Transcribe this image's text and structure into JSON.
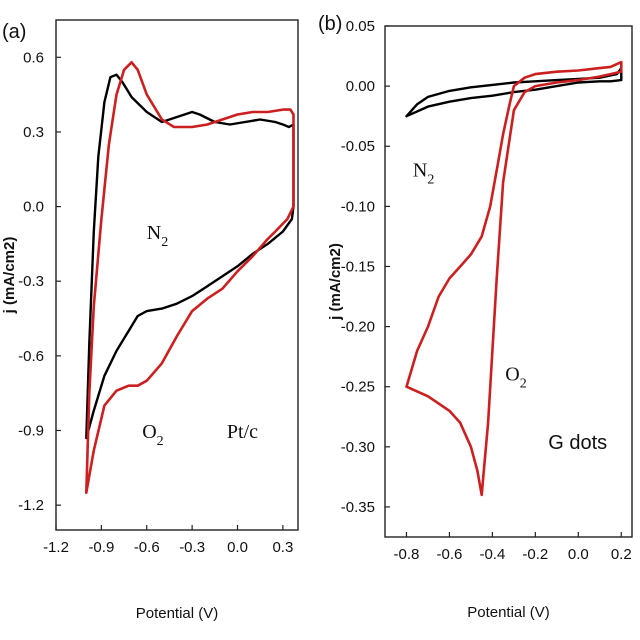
{
  "chart_data": [
    {
      "panel_label": "(a)",
      "type": "line",
      "xlabel": "Potential (V)",
      "ylabel": "j (mA/cm2)",
      "xlim": [
        -1.2,
        0.4
      ],
      "ylim": [
        -1.3,
        0.75
      ],
      "xticks": [
        -1.2,
        -0.9,
        -0.6,
        -0.3,
        0.0,
        0.3
      ],
      "xtick_labels": [
        "-1.2",
        "-0.9",
        "-0.6",
        "-0.3",
        "0.0",
        "0.3"
      ],
      "yticks": [
        -1.2,
        -0.9,
        -0.6,
        -0.3,
        0.0,
        0.3,
        0.6
      ],
      "ytick_labels": [
        "-1.2",
        "-0.9",
        "-0.6",
        "-0.3",
        "0.0",
        "0.3",
        "0.6"
      ],
      "annotations": [
        {
          "id": "n2",
          "base": "N",
          "sub": "2",
          "x": -0.6,
          "y": -0.13
        },
        {
          "id": "o2",
          "base": "O",
          "sub": "2",
          "x": -0.63,
          "y": -0.93
        },
        {
          "id": "ptc",
          "text": "Pt/c",
          "x": -0.07,
          "y": -0.93
        }
      ],
      "series": [
        {
          "gas": "N2",
          "color": "#000000",
          "points": [
            [
              -1.0,
              -0.93
            ],
            [
              -0.98,
              -0.55
            ],
            [
              -0.95,
              -0.1
            ],
            [
              -0.92,
              0.2
            ],
            [
              -0.88,
              0.42
            ],
            [
              -0.84,
              0.52
            ],
            [
              -0.8,
              0.53
            ],
            [
              -0.76,
              0.5
            ],
            [
              -0.7,
              0.44
            ],
            [
              -0.6,
              0.38
            ],
            [
              -0.5,
              0.34
            ],
            [
              -0.45,
              0.35
            ],
            [
              -0.4,
              0.36
            ],
            [
              -0.3,
              0.38
            ],
            [
              -0.25,
              0.37
            ],
            [
              -0.15,
              0.34
            ],
            [
              -0.05,
              0.33
            ],
            [
              0.05,
              0.34
            ],
            [
              0.15,
              0.35
            ],
            [
              0.25,
              0.34
            ],
            [
              0.3,
              0.33
            ],
            [
              0.34,
              0.32
            ],
            [
              0.37,
              0.33
            ],
            [
              0.37,
              0.0
            ],
            [
              0.36,
              -0.05
            ],
            [
              0.3,
              -0.1
            ],
            [
              0.2,
              -0.15
            ],
            [
              0.1,
              -0.19
            ],
            [
              0.0,
              -0.24
            ],
            [
              -0.1,
              -0.28
            ],
            [
              -0.2,
              -0.32
            ],
            [
              -0.3,
              -0.36
            ],
            [
              -0.4,
              -0.39
            ],
            [
              -0.5,
              -0.41
            ],
            [
              -0.6,
              -0.42
            ],
            [
              -0.66,
              -0.44
            ],
            [
              -0.72,
              -0.5
            ],
            [
              -0.8,
              -0.58
            ],
            [
              -0.88,
              -0.68
            ],
            [
              -0.95,
              -0.82
            ],
            [
              -1.0,
              -0.93
            ]
          ]
        },
        {
          "gas": "O2",
          "color": "#cc1f1f",
          "points": [
            [
              -1.0,
              -1.15
            ],
            [
              -0.98,
              -0.75
            ],
            [
              -0.95,
              -0.4
            ],
            [
              -0.9,
              -0.05
            ],
            [
              -0.85,
              0.25
            ],
            [
              -0.8,
              0.45
            ],
            [
              -0.75,
              0.55
            ],
            [
              -0.7,
              0.58
            ],
            [
              -0.66,
              0.55
            ],
            [
              -0.6,
              0.45
            ],
            [
              -0.5,
              0.35
            ],
            [
              -0.42,
              0.32
            ],
            [
              -0.3,
              0.32
            ],
            [
              -0.2,
              0.33
            ],
            [
              -0.1,
              0.35
            ],
            [
              0.0,
              0.37
            ],
            [
              0.1,
              0.38
            ],
            [
              0.2,
              0.38
            ],
            [
              0.3,
              0.39
            ],
            [
              0.35,
              0.39
            ],
            [
              0.37,
              0.37
            ],
            [
              0.37,
              0.0
            ],
            [
              0.33,
              -0.05
            ],
            [
              0.25,
              -0.1
            ],
            [
              0.2,
              -0.13
            ],
            [
              0.1,
              -0.2
            ],
            [
              0.0,
              -0.26
            ],
            [
              -0.1,
              -0.33
            ],
            [
              -0.2,
              -0.37
            ],
            [
              -0.3,
              -0.42
            ],
            [
              -0.4,
              -0.52
            ],
            [
              -0.5,
              -0.63
            ],
            [
              -0.6,
              -0.7
            ],
            [
              -0.66,
              -0.72
            ],
            [
              -0.72,
              -0.72
            ],
            [
              -0.8,
              -0.74
            ],
            [
              -0.88,
              -0.8
            ],
            [
              -0.95,
              -0.98
            ],
            [
              -1.0,
              -1.15
            ]
          ]
        }
      ]
    },
    {
      "panel_label": "(b)",
      "type": "line",
      "xlabel": "Potential (V)",
      "ylabel": "j (mA/cm2)",
      "xlim": [
        -0.9,
        0.25
      ],
      "ylim": [
        -0.375,
        0.05
      ],
      "xticks": [
        -0.8,
        -0.6,
        -0.4,
        -0.2,
        0.0,
        0.2
      ],
      "xtick_labels": [
        "-0.8",
        "-0.6",
        "-0.4",
        "-0.2",
        "0.0",
        "0.2"
      ],
      "yticks": [
        0.05,
        0.0,
        -0.05,
        -0.1,
        -0.15,
        -0.2,
        -0.25,
        -0.3,
        -0.35
      ],
      "ytick_labels": [
        "0.05",
        "0.00",
        "-0.05",
        "-0.10",
        "-0.15",
        "-0.20",
        "-0.25",
        "-0.30",
        "-0.35"
      ],
      "annotations": [
        {
          "id": "n2",
          "base": "N",
          "sub": "2",
          "x": -0.77,
          "y": -0.075
        },
        {
          "id": "o2",
          "base": "O",
          "sub": "2",
          "x": -0.34,
          "y": -0.245
        },
        {
          "id": "gdots",
          "text": "G dots",
          "x": -0.14,
          "y": -0.302
        }
      ],
      "series": [
        {
          "gas": "N2",
          "color": "#000000",
          "points": [
            [
              -0.8,
              -0.025
            ],
            [
              -0.75,
              -0.015
            ],
            [
              -0.7,
              -0.009
            ],
            [
              -0.6,
              -0.004
            ],
            [
              -0.5,
              -0.001
            ],
            [
              -0.4,
              0.001
            ],
            [
              -0.3,
              0.003
            ],
            [
              -0.2,
              0.004
            ],
            [
              -0.1,
              0.005
            ],
            [
              0.0,
              0.006
            ],
            [
              0.1,
              0.007
            ],
            [
              0.18,
              0.01
            ],
            [
              0.2,
              0.015
            ],
            [
              0.2,
              0.005
            ],
            [
              0.15,
              0.004
            ],
            [
              0.1,
              0.004
            ],
            [
              0.0,
              0.003
            ],
            [
              -0.1,
              0.0
            ],
            [
              -0.2,
              -0.003
            ],
            [
              -0.3,
              -0.005
            ],
            [
              -0.4,
              -0.008
            ],
            [
              -0.5,
              -0.01
            ],
            [
              -0.6,
              -0.013
            ],
            [
              -0.7,
              -0.017
            ],
            [
              -0.8,
              -0.025
            ]
          ]
        },
        {
          "gas": "O2",
          "color": "#cc1f1f",
          "points": [
            [
              -0.8,
              -0.25
            ],
            [
              -0.75,
              -0.22
            ],
            [
              -0.7,
              -0.2
            ],
            [
              -0.65,
              -0.175
            ],
            [
              -0.6,
              -0.16
            ],
            [
              -0.55,
              -0.15
            ],
            [
              -0.5,
              -0.14
            ],
            [
              -0.45,
              -0.125
            ],
            [
              -0.41,
              -0.1
            ],
            [
              -0.38,
              -0.07
            ],
            [
              -0.35,
              -0.04
            ],
            [
              -0.32,
              -0.015
            ],
            [
              -0.3,
              0.0
            ],
            [
              -0.25,
              0.007
            ],
            [
              -0.2,
              0.01
            ],
            [
              -0.1,
              0.012
            ],
            [
              0.0,
              0.013
            ],
            [
              0.1,
              0.015
            ],
            [
              0.15,
              0.016
            ],
            [
              0.2,
              0.02
            ],
            [
              0.2,
              0.012
            ],
            [
              0.15,
              0.01
            ],
            [
              0.1,
              0.008
            ],
            [
              0.0,
              0.005
            ],
            [
              -0.1,
              0.003
            ],
            [
              -0.2,
              0.0
            ],
            [
              -0.25,
              -0.005
            ],
            [
              -0.3,
              -0.02
            ],
            [
              -0.35,
              -0.08
            ],
            [
              -0.38,
              -0.16
            ],
            [
              -0.4,
              -0.22
            ],
            [
              -0.42,
              -0.28
            ],
            [
              -0.44,
              -0.32
            ],
            [
              -0.45,
              -0.34
            ],
            [
              -0.47,
              -0.32
            ],
            [
              -0.5,
              -0.3
            ],
            [
              -0.55,
              -0.28
            ],
            [
              -0.6,
              -0.27
            ],
            [
              -0.7,
              -0.258
            ],
            [
              -0.8,
              -0.25
            ]
          ]
        }
      ]
    }
  ]
}
